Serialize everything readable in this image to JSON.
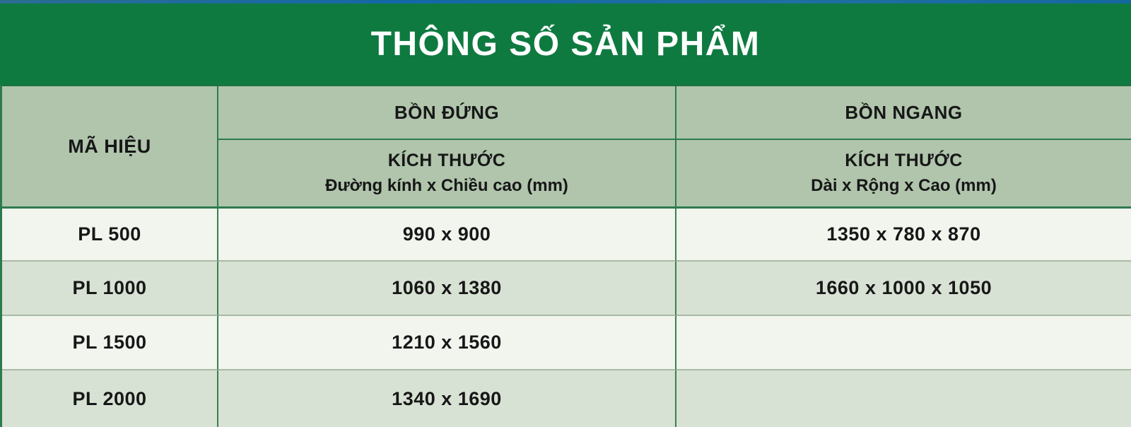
{
  "banner": {
    "title": "THÔNG SỐ SẢN PHẨM"
  },
  "table": {
    "model_header": "MÃ HIỆU",
    "groups": [
      {
        "title": "BỒN ĐỨNG",
        "size_label": "KÍCH THƯỚC",
        "size_sub": "Đường kính x Chiều cao (mm)"
      },
      {
        "title": "BỒN NGANG",
        "size_label": "KÍCH THƯỚC",
        "size_sub": "Dài x Rộng x Cao (mm)"
      }
    ],
    "rows": [
      {
        "model": "PL 500",
        "vertical": "990 x 900",
        "horizontal": "1350 x 780 x 870"
      },
      {
        "model": "PL 1000",
        "vertical": "1060 x 1380",
        "horizontal": "1660 x 1000 x 1050"
      },
      {
        "model": "PL 1500",
        "vertical": "1210 x 1560",
        "horizontal": ""
      },
      {
        "model": "PL 2000",
        "vertical": "1340 x 1690",
        "horizontal": ""
      }
    ]
  },
  "colors": {
    "banner_green": "#0e7a40",
    "top_strip_blue": "#1568a6",
    "header_sage": "#b0c5ac",
    "row_light": "#f1f5ee",
    "row_dark": "#d8e2d4",
    "border_dark_green": "#2d7b4d",
    "body_separator": "#a8bba4",
    "text": "#171717",
    "title_text": "#ffffff"
  }
}
